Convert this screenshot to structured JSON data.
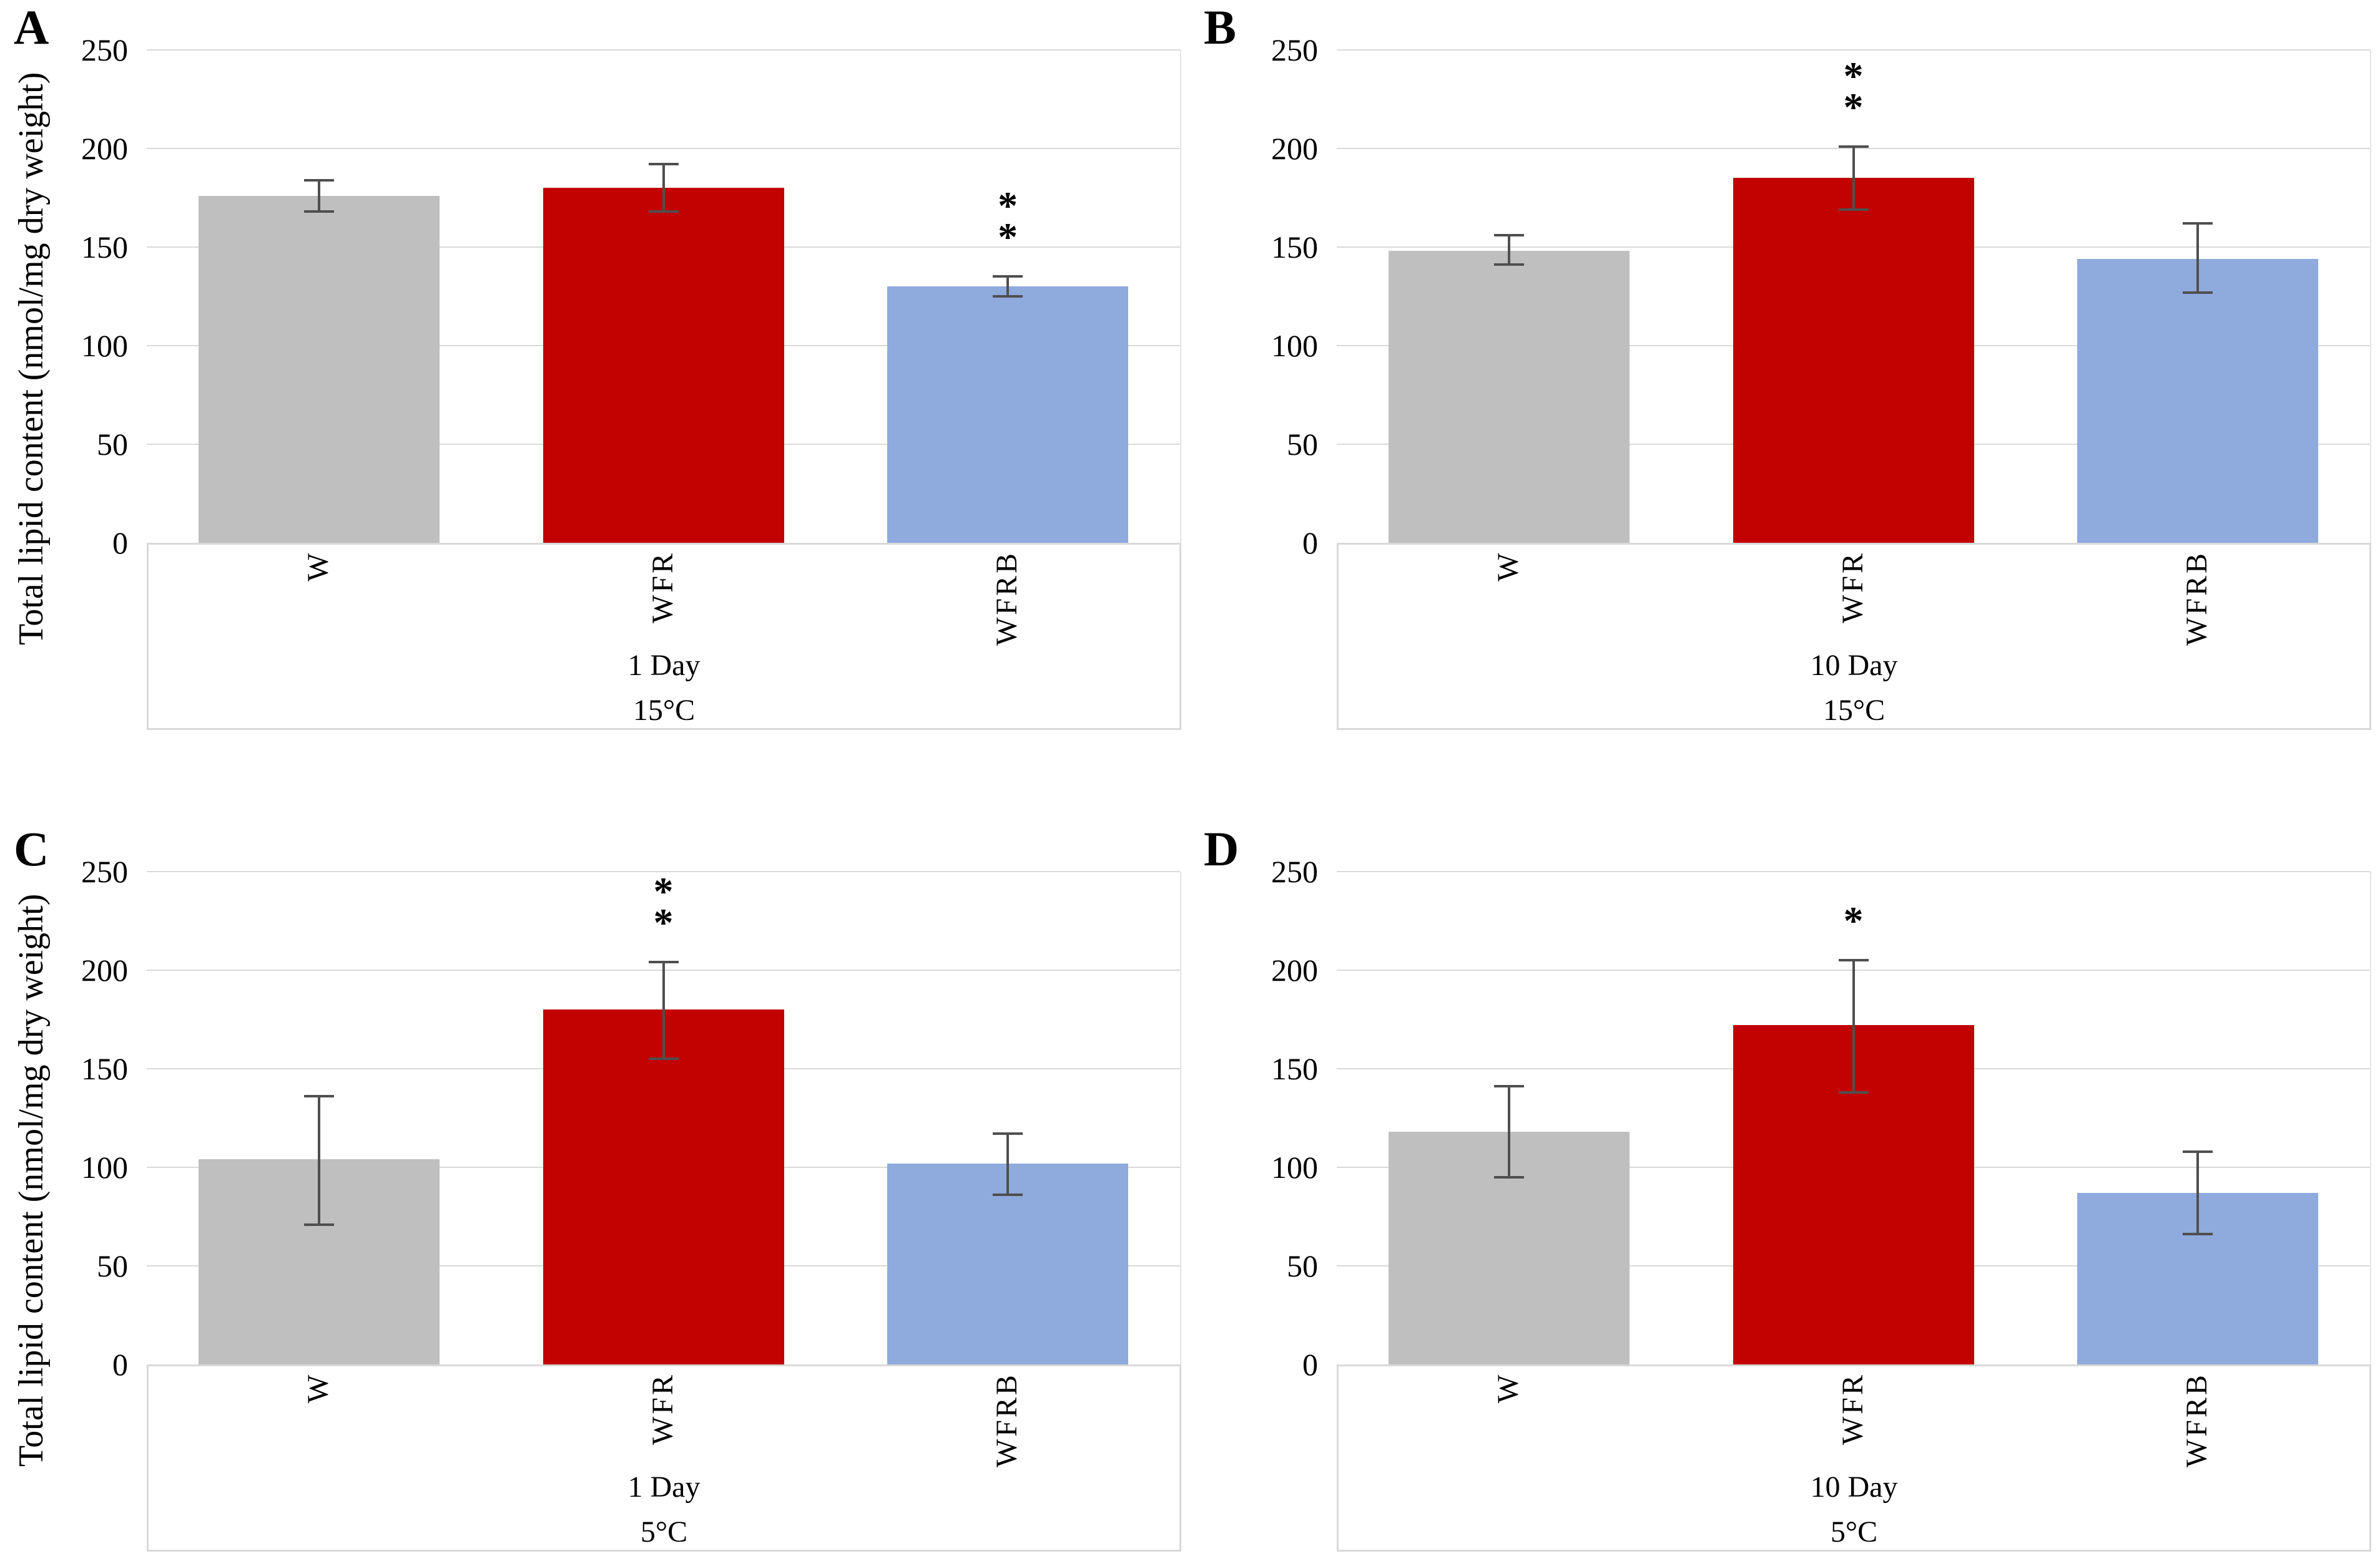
{
  "style": {
    "background": "#FFFFFF",
    "text_color": "#000000",
    "bar_colors": [
      "#BFBFBF",
      "#C20101",
      "#8FAADC"
    ],
    "error_bar_color": "#4F4F4F",
    "gridline_color": "#D9D9D9",
    "axis_box_border_color": "#D9D9D9"
  },
  "chart_data": [
    {
      "type": "bar",
      "panel_letter": "A",
      "ylabel": "Total lipid content (nmol/mg dry weight)",
      "show_ylabel": true,
      "ylim": [
        0,
        250
      ],
      "yticks": [
        0,
        50,
        100,
        150,
        200,
        250
      ],
      "grid": true,
      "legend": "none",
      "categories": [
        "W",
        "WFR",
        "WFRB"
      ],
      "values": [
        176,
        180,
        130
      ],
      "error_low": [
        168,
        168,
        125
      ],
      "error_high": [
        184,
        192,
        135
      ],
      "significance": [
        "",
        "",
        "**"
      ],
      "group_label": "1 Day",
      "temperature_label": "15°C"
    },
    {
      "type": "bar",
      "panel_letter": "B",
      "ylabel": "Total lipid content (nmol/mg dry weight)",
      "show_ylabel": false,
      "ylim": [
        0,
        250
      ],
      "yticks": [
        0,
        50,
        100,
        150,
        200,
        250
      ],
      "grid": true,
      "legend": "none",
      "categories": [
        "W",
        "WFR",
        "WFRB"
      ],
      "values": [
        148,
        185,
        144
      ],
      "error_low": [
        141,
        169,
        127
      ],
      "error_high": [
        156,
        201,
        162
      ],
      "significance": [
        "",
        "**",
        ""
      ],
      "group_label": "10 Day",
      "temperature_label": "15°C"
    },
    {
      "type": "bar",
      "panel_letter": "C",
      "ylabel": "Total lipid content (nmol/mg dry weight)",
      "show_ylabel": true,
      "ylim": [
        0,
        250
      ],
      "yticks": [
        0,
        50,
        100,
        150,
        200,
        250
      ],
      "grid": true,
      "legend": "none",
      "categories": [
        "W",
        "WFR",
        "WFRB"
      ],
      "values": [
        104,
        180,
        102
      ],
      "error_low": [
        71,
        155,
        86
      ],
      "error_high": [
        136,
        204,
        117
      ],
      "significance": [
        "",
        "**",
        ""
      ],
      "group_label": "1 Day",
      "temperature_label": "5°C"
    },
    {
      "type": "bar",
      "panel_letter": "D",
      "ylabel": "Total lipid content (nmol/mg dry weight)",
      "show_ylabel": false,
      "ylim": [
        0,
        250
      ],
      "yticks": [
        0,
        50,
        100,
        150,
        200,
        250
      ],
      "grid": true,
      "legend": "none",
      "categories": [
        "W",
        "WFR",
        "WFRB"
      ],
      "values": [
        118,
        172,
        87
      ],
      "error_low": [
        95,
        138,
        66
      ],
      "error_high": [
        141,
        205,
        108
      ],
      "significance": [
        "",
        "*",
        ""
      ],
      "group_label": "10 Day",
      "temperature_label": "5°C"
    }
  ]
}
